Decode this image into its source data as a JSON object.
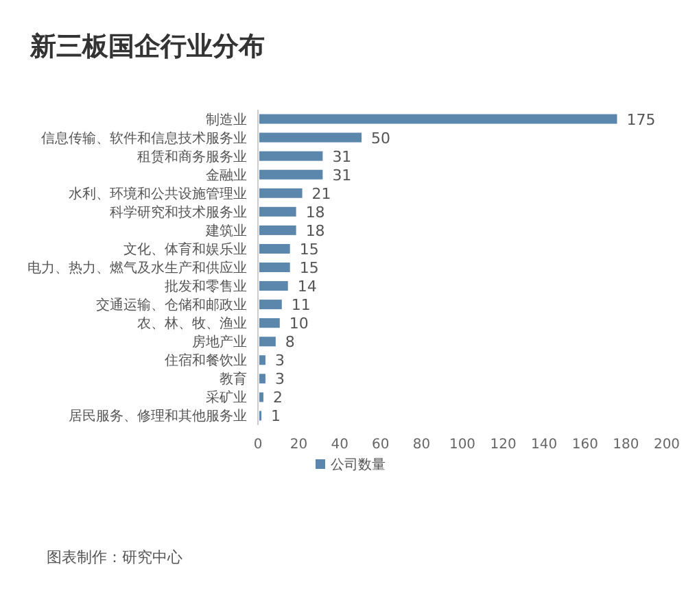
{
  "chart_data": {
    "type": "bar",
    "orientation": "horizontal",
    "title": "新三板国企行业分布",
    "categories": [
      "制造业",
      "信息传输、软件和信息技术服务业",
      "租赁和商务服务业",
      "金融业",
      "水利、环境和公共设施管理业",
      "科学研究和技术服务业",
      "建筑业",
      "文化、体育和娱乐业",
      "电力、热力、燃气及水生产和供应业",
      "批发和零售业",
      "交通运输、仓储和邮政业",
      "农、林、牧、渔业",
      "房地产业",
      "住宿和餐饮业",
      "教育",
      "采矿业",
      "居民服务、修理和其他服务业"
    ],
    "series": [
      {
        "name": "公司数量",
        "color": "#5b87ad",
        "values": [
          175,
          50,
          31,
          31,
          21,
          18,
          18,
          15,
          15,
          14,
          11,
          10,
          8,
          3,
          3,
          2,
          1
        ]
      }
    ],
    "xlim": [
      0,
      200
    ],
    "xticks": [
      0,
      20,
      40,
      60,
      80,
      100,
      120,
      140,
      160,
      180,
      200
    ],
    "data_labels": true,
    "legend": "bottom",
    "annotations": [
      "图表制作：研究中心"
    ]
  }
}
